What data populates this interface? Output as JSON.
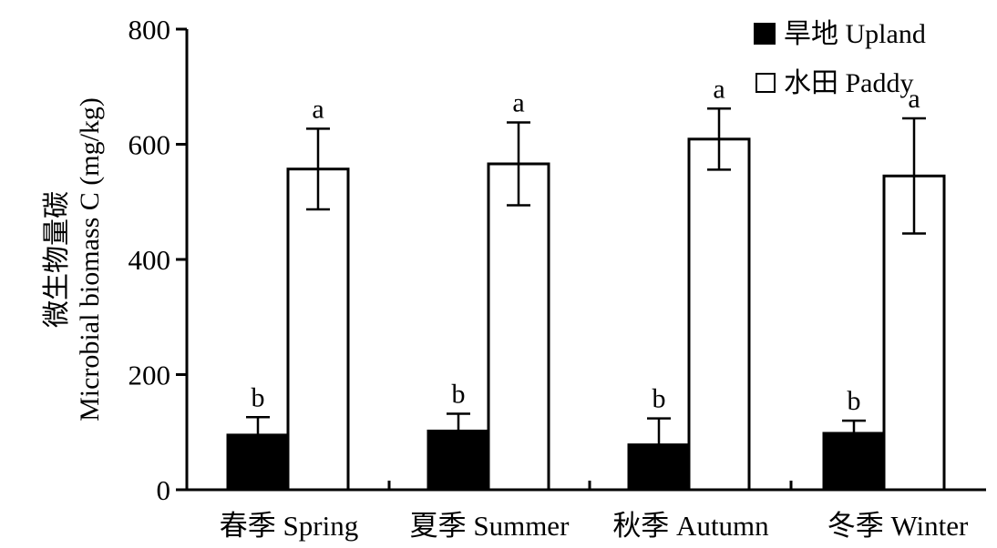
{
  "chart_data": {
    "type": "bar",
    "ylabel_line1": "微生物量碳",
    "ylabel_line2": "Microbial biomass C (mg/kg)",
    "ylim": [
      0,
      800
    ],
    "yticks": [
      0,
      200,
      400,
      600,
      800
    ],
    "categories": [
      "春季 Spring",
      "夏季 Summer",
      "秋季 Autumn",
      "冬季 Winter"
    ],
    "legend_position": "top-right",
    "series": [
      {
        "name": "旱地 Upland",
        "fill": "#000000",
        "values": [
          95,
          102,
          78,
          98
        ],
        "errors": [
          31,
          30,
          46,
          22
        ],
        "letters": [
          "b",
          "b",
          "b",
          "b"
        ]
      },
      {
        "name": "水田 Paddy",
        "fill": "#ffffff",
        "values": [
          557,
          566,
          609,
          545
        ],
        "errors": [
          70,
          72,
          53,
          100
        ],
        "letters": [
          "a",
          "a",
          "a",
          "a"
        ]
      }
    ]
  }
}
